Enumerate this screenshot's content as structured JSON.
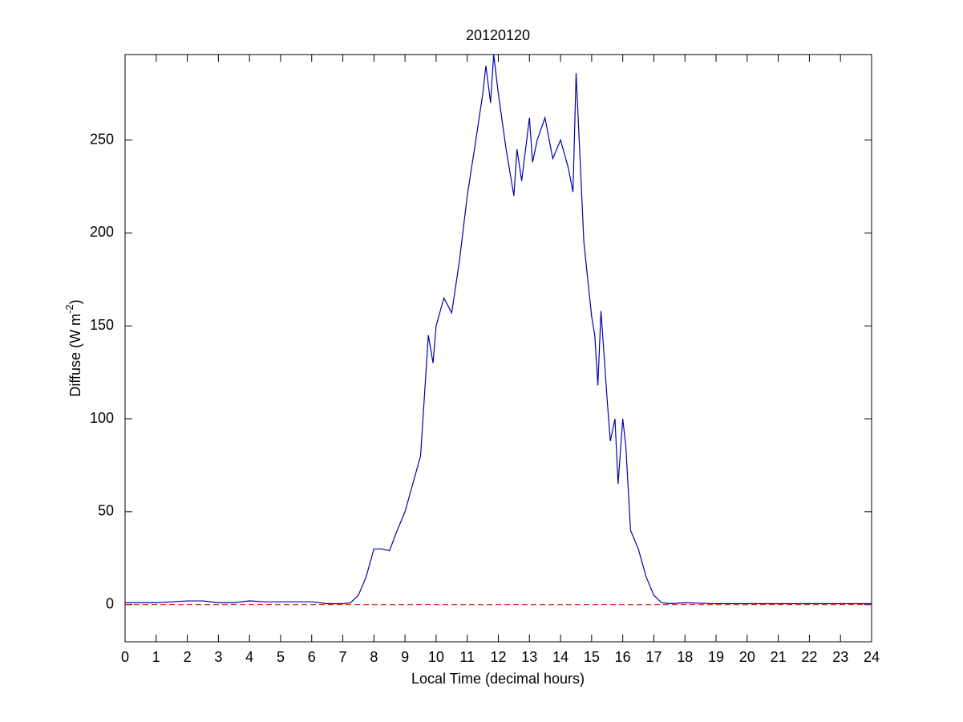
{
  "chart_data": {
    "type": "line",
    "title": "20120120",
    "xlabel": "Local Time (decimal hours)",
    "ylabel": "Diffuse (W m",
    "ylabel_superscript": "-2",
    "ylabel_end": ")",
    "xlim": [
      0,
      24
    ],
    "xticks": [
      0,
      1,
      2,
      3,
      4,
      5,
      6,
      7,
      8,
      9,
      10,
      11,
      12,
      13,
      14,
      15,
      16,
      17,
      18,
      19,
      20,
      21,
      22,
      23,
      24
    ],
    "ylim": [
      -20,
      296
    ],
    "yticks": [
      0,
      50,
      100,
      150,
      200,
      250
    ],
    "reference_line": {
      "value": 0,
      "color": "#cc2222"
    },
    "x": [
      0,
      0.5,
      1,
      1.5,
      2,
      2.5,
      3,
      3.5,
      4,
      4.5,
      5,
      5.5,
      6,
      6.5,
      7,
      7.25,
      7.5,
      7.75,
      8,
      8.25,
      8.5,
      8.75,
      9,
      9.25,
      9.5,
      9.75,
      9.9,
      10,
      10.25,
      10.5,
      10.75,
      11,
      11.25,
      11.5,
      11.6,
      11.75,
      11.85,
      12,
      12.25,
      12.5,
      12.6,
      12.75,
      13,
      13.1,
      13.25,
      13.5,
      13.75,
      14,
      14.25,
      14.4,
      14.5,
      14.6,
      14.75,
      15,
      15.1,
      15.2,
      15.3,
      15.5,
      15.6,
      15.75,
      15.85,
      16,
      16.1,
      16.25,
      16.5,
      16.75,
      17,
      17.25,
      17.5,
      18,
      19,
      20,
      24
    ],
    "series": [
      {
        "name": "Diffuse",
        "color": "#0000aa",
        "values": [
          1,
          1,
          1,
          1.5,
          2,
          2,
          1,
          1,
          2,
          1.5,
          1.5,
          1.5,
          1.5,
          0.5,
          0.5,
          1,
          5,
          15,
          30,
          30,
          29,
          40,
          50,
          65,
          80,
          145,
          130,
          150,
          165,
          157,
          185,
          220,
          247,
          275,
          290,
          270,
          296,
          275,
          245,
          220,
          245,
          228,
          262,
          238,
          250,
          262,
          240,
          250,
          235,
          222,
          286,
          250,
          195,
          155,
          145,
          118,
          158,
          110,
          88,
          100,
          65,
          100,
          85,
          40,
          30,
          15,
          5,
          1,
          0.5,
          1,
          0.5,
          0.5,
          0.5
        ]
      }
    ]
  }
}
